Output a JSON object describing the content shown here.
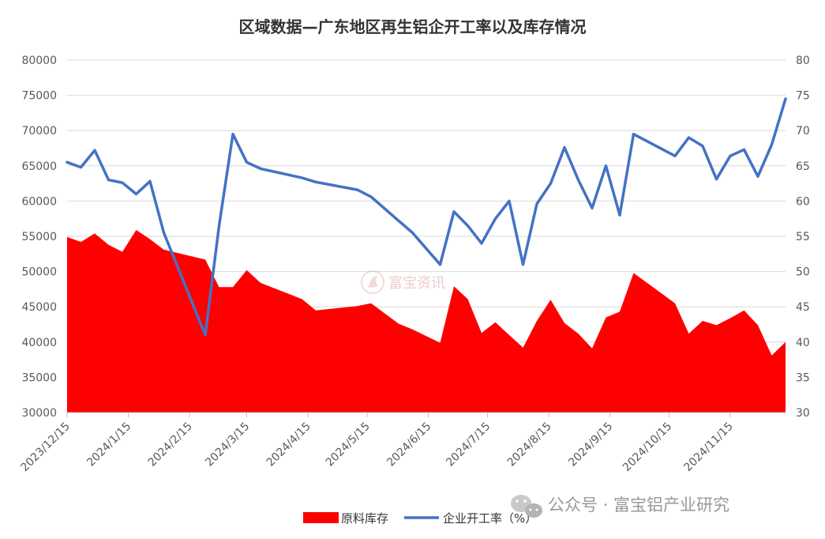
{
  "chart_data": {
    "type": "area+line",
    "title": "区域数据—广东地区再生铝企开工率以及库存情况",
    "x": [
      "2023-12-15",
      "2023-12-22",
      "2023-12-29",
      "2024-01-05",
      "2024-01-12",
      "2024-01-19",
      "2024-01-26",
      "2024-02-02",
      "2024-02-23",
      "2024-03-01",
      "2024-03-08",
      "2024-03-15",
      "2024-03-22",
      "2024-04-12",
      "2024-04-19",
      "2024-05-10",
      "2024-05-17",
      "2024-05-31",
      "2024-06-07",
      "2024-06-21",
      "2024-06-28",
      "2024-07-05",
      "2024-07-12",
      "2024-07-19",
      "2024-07-26",
      "2024-08-02",
      "2024-08-09",
      "2024-08-16",
      "2024-08-23",
      "2024-08-30",
      "2024-09-06",
      "2024-09-13",
      "2024-09-20",
      "2024-09-27",
      "2024-10-18",
      "2024-10-25",
      "2024-11-01",
      "2024-11-08",
      "2024-11-15",
      "2024-11-22",
      "2024-11-29",
      "2024-12-06",
      "2024-12-13"
    ],
    "series": [
      {
        "name": "原料库存",
        "axis": "left",
        "style": "area",
        "color": "#ff0000",
        "values": [
          54900,
          54200,
          55400,
          53800,
          52800,
          55900,
          54600,
          53100,
          51700,
          47800,
          47800,
          50200,
          48400,
          46100,
          44500,
          45100,
          45500,
          42600,
          41800,
          39900,
          47900,
          46100,
          41300,
          42800,
          41000,
          39200,
          43000,
          46000,
          42700,
          41200,
          39100,
          43500,
          44300,
          49800,
          45500,
          41200,
          43000,
          42400,
          43400,
          44500,
          42400,
          38100,
          40000
        ]
      },
      {
        "name": "企业开工率（%）",
        "axis": "right",
        "style": "line",
        "color": "#4472c4",
        "values": [
          65.5,
          64.8,
          67.2,
          63.0,
          62.6,
          61.0,
          62.8,
          55.5,
          41.0,
          56.5,
          69.5,
          65.5,
          64.6,
          63.3,
          62.7,
          61.6,
          60.6,
          57.2,
          55.5,
          51.0,
          58.5,
          56.5,
          54.0,
          57.5,
          60.0,
          51.0,
          59.6,
          62.5,
          67.6,
          63.0,
          59.0,
          65.0,
          58.0,
          69.5,
          66.4,
          69.0,
          67.8,
          63.1,
          66.4,
          67.3,
          63.5,
          68.0,
          74.5
        ]
      }
    ],
    "x_tick_labels": [
      "2023/12/15",
      "2024/1/15",
      "2024/2/15",
      "2024/3/15",
      "2024/4/15",
      "2024/5/15",
      "2024/6/15",
      "2024/7/15",
      "2024/8/15",
      "2024/9/15",
      "2024/10/15",
      "2024/11/15"
    ],
    "x_tick_dates": [
      "2023-12-15",
      "2024-01-15",
      "2024-02-15",
      "2024-03-15",
      "2024-04-15",
      "2024-05-15",
      "2024-06-15",
      "2024-07-15",
      "2024-08-15",
      "2024-09-15",
      "2024-10-15",
      "2024-11-15"
    ],
    "x_range": [
      "2023-12-15",
      "2024-12-13"
    ],
    "y_left": {
      "min": 30000,
      "max": 80000,
      "ticks": [
        30000,
        35000,
        40000,
        45000,
        50000,
        55000,
        60000,
        65000,
        70000,
        75000,
        80000
      ]
    },
    "y_right": {
      "min": 30,
      "max": 80,
      "ticks": [
        30,
        35,
        40,
        45,
        50,
        55,
        60,
        65,
        70,
        75,
        80
      ]
    },
    "grid": "horizontal",
    "legend_position": "bottom",
    "xlabel": "",
    "ylabel": ""
  },
  "watermark": {
    "center_text": "富宝资讯",
    "footer_text": "公众号 · 富宝铝产业研究"
  },
  "colors": {
    "grid": "#d9d9d9",
    "axis": "#bfbfbf",
    "area": "#ff0000",
    "line": "#4472c4"
  },
  "icons": {
    "footer": "wechat-icon",
    "center": "fubao-logo-icon"
  }
}
